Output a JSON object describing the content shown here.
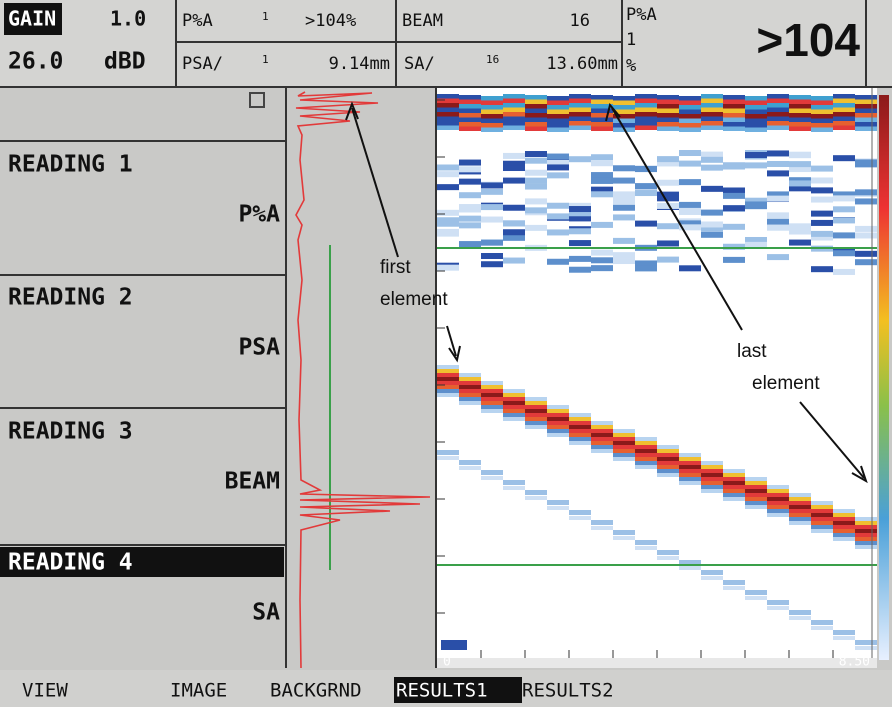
{
  "header": {
    "gain_label": "GAIN",
    "gain_step": "1.0",
    "gain_value": "26.0",
    "gain_unit": "dBD",
    "cells": [
      {
        "label": "P%A",
        "sub": "1",
        "value": ">104%"
      },
      {
        "label": "BEAM",
        "sub": "",
        "value": "16"
      },
      {
        "label": "PSA/",
        "sub": "1",
        "value": "9.14mm"
      },
      {
        "label": "SA/",
        "sub": "16",
        "value": "13.60mm"
      }
    ],
    "big_label": "P%A",
    "big_sub": "1",
    "big_unit": "%",
    "big_value": ">104"
  },
  "readings": [
    {
      "title": "READING 1",
      "param": "P%A"
    },
    {
      "title": "READING 2",
      "param": "PSA"
    },
    {
      "title": "READING 3",
      "param": "BEAM"
    },
    {
      "title": "READING 4",
      "param": "SA"
    }
  ],
  "scan": {
    "x_start": "0",
    "x_end": "8.50"
  },
  "annotations": {
    "first_element": [
      "first",
      "element"
    ],
    "last_element": [
      "last",
      "element"
    ]
  },
  "menu": [
    "VIEW",
    "IMAGE",
    "BACKGRND",
    "RESULTS1",
    "RESULTS2"
  ]
}
